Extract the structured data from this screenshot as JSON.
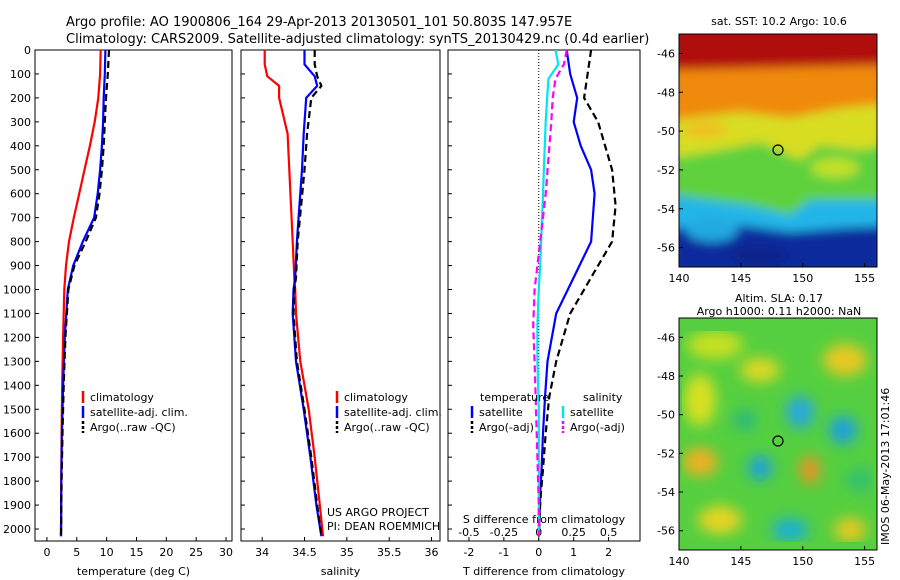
{
  "header": {
    "line1": "Argo profile: AO 1900806_164 29-Apr-2013 20130501_101 50.803S 147.957E",
    "line2": "Climatology: CARS2009. Satellite-adjusted climatology: synTS_20130429.nc (0.4d earlier)"
  },
  "credit": {
    "line1": "US ARGO PROJECT",
    "line2": "PI: DEAN ROEMMICH"
  },
  "stamp": "IMOS 06-May-2013 17:01:46",
  "colors": {
    "climatology": "#ff0000",
    "satellite": "#0000ff",
    "argo": "#000000",
    "salinity_satellite": "#00e5ee",
    "salinity_argo": "#ff00ff"
  },
  "chart_data": [
    {
      "type": "line",
      "panel": "temperature",
      "xlabel": "temperature (deg C)",
      "ylabel": "",
      "xlim": [
        -2,
        31
      ],
      "ylim": [
        2050,
        0
      ],
      "xticks": [
        0,
        5,
        10,
        15,
        20,
        25,
        30
      ],
      "yticks": [
        0,
        100,
        200,
        300,
        400,
        500,
        600,
        700,
        800,
        900,
        1000,
        1100,
        1200,
        1300,
        1400,
        1500,
        1600,
        1700,
        1800,
        1900,
        2000
      ],
      "legend_location": "lower-center",
      "series": [
        {
          "name": "climatology",
          "style": "solid",
          "color": "#ff0000",
          "x": [
            9.0,
            8.9,
            8.6,
            8.0,
            7.2,
            6.3,
            5.4,
            4.5,
            3.7,
            3.2,
            2.9,
            2.7,
            2.55,
            2.45,
            2.4,
            2.35
          ],
          "y": [
            0,
            100,
            200,
            300,
            400,
            500,
            600,
            700,
            800,
            900,
            1000,
            1200,
            1400,
            1600,
            1800,
            2030
          ]
        },
        {
          "name": "satellite-adj. clim.",
          "style": "solid",
          "color": "#0000ff",
          "x": [
            9.8,
            9.7,
            9.5,
            9.4,
            9.2,
            8.9,
            8.5,
            7.9,
            6.0,
            4.4,
            3.5,
            3.0,
            2.7,
            2.5,
            2.4,
            2.35
          ],
          "y": [
            0,
            100,
            200,
            300,
            400,
            500,
            600,
            700,
            800,
            900,
            1000,
            1200,
            1400,
            1600,
            1800,
            2030
          ]
        },
        {
          "name": "Argo(..raw -QC)",
          "style": "dashed",
          "color": "#000000",
          "x": [
            10.4,
            10.2,
            9.9,
            9.7,
            9.5,
            9.2,
            8.8,
            8.2,
            6.5,
            4.6,
            3.6,
            3.1,
            2.8,
            2.6,
            2.45,
            2.35
          ],
          "y": [
            0,
            100,
            200,
            300,
            400,
            500,
            600,
            700,
            800,
            900,
            1000,
            1200,
            1400,
            1600,
            1800,
            2030
          ]
        }
      ],
      "legend": [
        "climatology",
        "satellite-adj. clim.",
        "Argo(..raw -QC)"
      ]
    },
    {
      "type": "line",
      "panel": "salinity",
      "xlabel": "salinity",
      "ylabel": "",
      "xlim": [
        33.75,
        36.1
      ],
      "ylim": [
        2050,
        0
      ],
      "xticks": [
        34,
        34.5,
        35,
        35.5,
        36
      ],
      "legend_location": "lower-center",
      "series": [
        {
          "name": "climatology",
          "style": "solid",
          "color": "#ff0000",
          "x": [
            34.03,
            34.03,
            34.06,
            34.2,
            34.2,
            34.3,
            34.32,
            34.34,
            34.36,
            34.38,
            34.39,
            34.4,
            34.45,
            34.55,
            34.62,
            34.68,
            34.72
          ],
          "y": [
            0,
            60,
            110,
            150,
            200,
            350,
            500,
            650,
            800,
            950,
            1000,
            1100,
            1300,
            1500,
            1700,
            1900,
            2030
          ]
        },
        {
          "name": "satellite-adj. clim.",
          "style": "solid",
          "color": "#0000ff",
          "x": [
            34.5,
            34.5,
            34.62,
            34.65,
            34.52,
            34.49,
            34.47,
            34.44,
            34.41,
            34.39,
            34.37,
            34.36,
            34.4,
            34.49,
            34.57,
            34.64,
            34.7
          ],
          "y": [
            0,
            60,
            110,
            150,
            200,
            350,
            500,
            650,
            800,
            950,
            1000,
            1100,
            1300,
            1500,
            1700,
            1900,
            2030
          ]
        },
        {
          "name": "Argo(..raw -QC)",
          "style": "dashed",
          "color": "#000000",
          "x": [
            34.62,
            34.62,
            34.65,
            34.7,
            34.58,
            34.53,
            34.5,
            34.46,
            34.42,
            34.4,
            34.38,
            34.37,
            34.41,
            34.5,
            34.58,
            34.65,
            34.7
          ],
          "y": [
            0,
            60,
            110,
            150,
            200,
            350,
            500,
            650,
            800,
            950,
            1000,
            1100,
            1300,
            1500,
            1700,
            1900,
            2030
          ]
        }
      ],
      "legend": [
        "climatology",
        "satellite-adj. clim.",
        "Argo(..raw -QC)"
      ]
    },
    {
      "type": "line",
      "panel": "difference",
      "xlabel": "T difference from climatology",
      "x2label": "S difference from climatology",
      "xlim": [
        -2.6,
        2.9
      ],
      "x2lim": [
        -0.65,
        0.725
      ],
      "ylim": [
        2050,
        0
      ],
      "xticks": [
        -2,
        -1,
        0,
        1,
        2
      ],
      "x2ticks": [
        "-0.5",
        "-0.25",
        "0",
        "0.25",
        "0.5"
      ],
      "zero_line": "dotted",
      "legend_location": "lower-center",
      "legend_groups": [
        {
          "title": "temperature",
          "items": [
            "satellite",
            "Argo(-adj)"
          ]
        },
        {
          "title": "salinity",
          "items": [
            "satellite",
            "Argo(-adj)"
          ]
        }
      ],
      "series": [
        {
          "name": "temperature satellite",
          "style": "solid",
          "color": "#0000ff",
          "x": [
            0.8,
            0.9,
            1.1,
            1.0,
            1.2,
            1.5,
            1.6,
            1.5,
            1.0,
            0.5,
            0.25,
            0.18,
            0.12,
            0.08,
            0.04,
            0.02,
            0.0
          ],
          "y": [
            0,
            100,
            200,
            300,
            400,
            500,
            600,
            800,
            950,
            1100,
            1300,
            1450,
            1600,
            1750,
            1850,
            1950,
            2030
          ]
        },
        {
          "name": "temperature Argo(-adj)",
          "style": "dashed",
          "color": "#000000",
          "x": [
            1.5,
            1.4,
            1.3,
            1.7,
            1.9,
            2.1,
            2.2,
            2.1,
            1.5,
            0.9,
            0.5,
            0.3,
            0.2,
            0.12,
            0.06,
            0.02,
            0.0
          ],
          "y": [
            0,
            100,
            200,
            300,
            400,
            500,
            650,
            800,
            950,
            1100,
            1300,
            1450,
            1600,
            1750,
            1850,
            1950,
            2030
          ]
        },
        {
          "name": "salinity satellite",
          "style": "solid",
          "color": "#00e5ee",
          "x2": [
            0.12,
            0.14,
            0.07,
            0.06,
            0.05,
            0.04,
            0.03,
            0.02,
            0.01,
            0.0,
            -0.01,
            -0.01,
            0.0,
            0.0,
            0.0,
            0.0
          ],
          "y": [
            0,
            60,
            120,
            200,
            300,
            450,
            600,
            750,
            900,
            1000,
            1150,
            1300,
            1500,
            1700,
            1900,
            2030
          ]
        },
        {
          "name": "salinity Argo(-adj)",
          "style": "dashed",
          "color": "#ff00ff",
          "x2": [
            0.2,
            0.18,
            0.12,
            0.1,
            0.09,
            0.07,
            0.05,
            0.02,
            -0.01,
            -0.03,
            -0.04,
            -0.03,
            -0.02,
            -0.01,
            0.0,
            0.0
          ],
          "y": [
            0,
            60,
            120,
            200,
            300,
            450,
            600,
            750,
            900,
            1000,
            1150,
            1300,
            1500,
            1700,
            1900,
            2030
          ]
        }
      ],
      "legend": [
        "satellite",
        "Argo(-adj)",
        "satellite",
        "Argo(-adj)"
      ]
    },
    {
      "type": "heatmap",
      "panel": "sst_map",
      "title": "sat. SST: 10.2  Argo: 10.6",
      "xlim": [
        140,
        156
      ],
      "ylim": [
        -57,
        -45
      ],
      "xticks": [
        140,
        145,
        150,
        155
      ],
      "yticks": [
        -46,
        -48,
        -50,
        -52,
        -54,
        -56
      ],
      "colormap": "jet",
      "marker": {
        "lon": 147.957,
        "lat": -50.803
      }
    },
    {
      "type": "heatmap",
      "panel": "sla_map",
      "title": "Altim. SLA: 0.17",
      "subtitle": "Argo h1000: 0.11  h2000: NaN",
      "xlim": [
        140,
        156
      ],
      "ylim": [
        -57,
        -45
      ],
      "xticks": [
        140,
        145,
        150,
        155
      ],
      "yticks": [
        -46,
        -48,
        -50,
        -52,
        -54,
        -56
      ],
      "colormap": "jet",
      "marker": {
        "lon": 147.957,
        "lat": -50.803
      }
    }
  ]
}
